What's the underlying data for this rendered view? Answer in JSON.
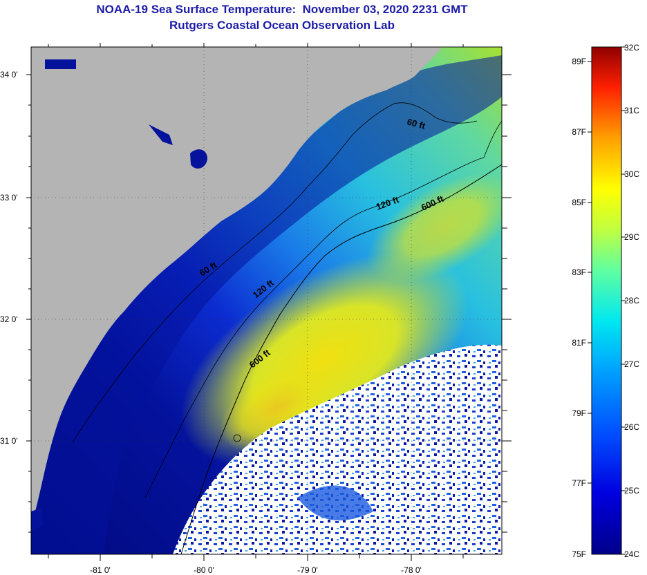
{
  "title": "NOAA-19 Sea Surface Temperature:  November 03, 2020 2231 GMT",
  "subtitle": "Rutgers Coastal Ocean Observation Lab",
  "axes": {
    "lat_ticks": [
      "34 0'",
      "33 0'",
      "32 0'",
      "31 0'"
    ],
    "lon_ticks": [
      "-81 0'",
      "-80 0'",
      "-79 0'",
      "-78 0'"
    ]
  },
  "contours": {
    "c60": "60 ft",
    "c120": "120 ft",
    "c600": "600 ft"
  },
  "colorbar": {
    "fahrenheit": [
      "89F",
      "87F",
      "85F",
      "83F",
      "81F",
      "79F",
      "77F",
      "75F"
    ],
    "celsius": [
      "32C",
      "31C",
      "30C",
      "29C",
      "28C",
      "27C",
      "26C",
      "25C",
      "24C"
    ]
  },
  "colors": {
    "land": "#b4b4b4",
    "title": "#1c1ca8",
    "cloud": "#ffffff"
  }
}
